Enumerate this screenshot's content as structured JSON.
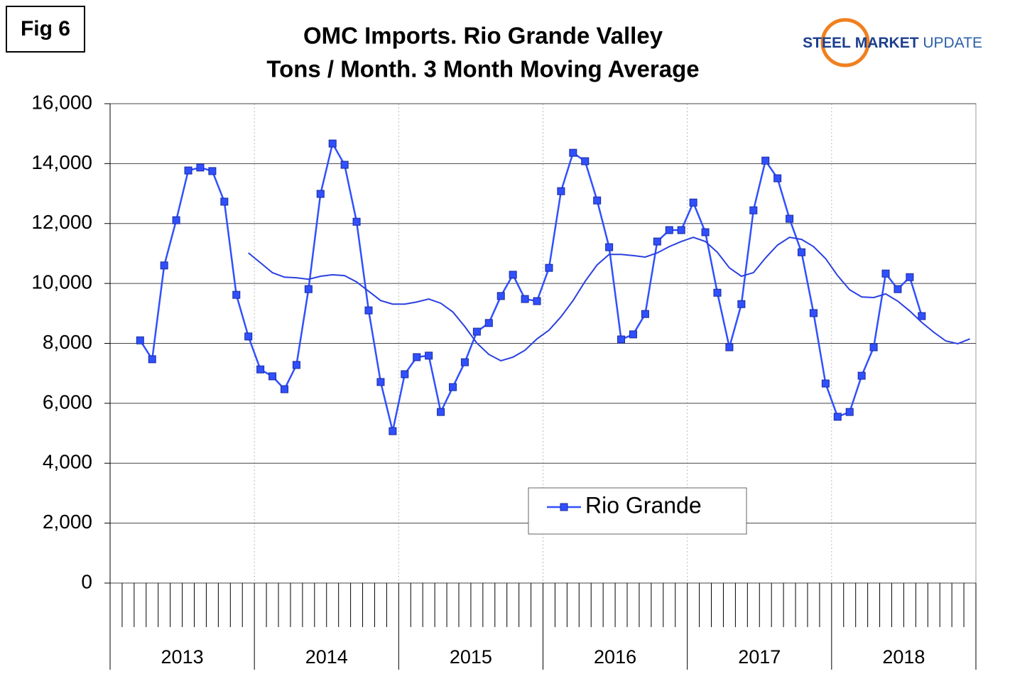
{
  "chart_data": {
    "type": "line",
    "fig_label": "Fig 6",
    "title_lines": [
      "OMC Imports. Rio Grande Valley",
      "Tons / Month. 3 Month Moving Average"
    ],
    "logo": [
      "STEEL",
      "MARKET",
      "UPDATE"
    ],
    "categories": [
      null,
      null,
      null,
      null,
      null,
      null,
      null,
      null,
      null,
      null,
      null,
      null,
      null,
      null,
      null,
      null,
      null,
      null,
      null,
      null,
      null,
      null,
      null,
      null,
      null,
      null,
      null,
      null,
      null,
      null,
      null,
      null,
      null,
      null,
      null,
      null,
      null,
      null,
      null,
      null,
      null,
      null,
      null,
      null,
      null,
      null,
      null,
      null,
      null,
      null,
      null,
      null,
      null,
      null,
      null,
      null,
      null,
      null,
      null,
      null,
      null,
      null,
      null,
      null,
      null,
      null,
      null,
      null,
      null,
      null,
      null,
      null
    ],
    "year_labels": [
      "2013",
      "2014",
      "2015",
      "2016",
      "2017",
      "2018"
    ],
    "series": [
      {
        "name": "Rio Grande",
        "color": "#3050ff",
        "markers": true,
        "values": [
          null,
          null,
          8100,
          7470,
          10600,
          12110,
          13770,
          13870,
          13750,
          12730,
          9620,
          8230,
          7130,
          6900,
          6470,
          7280,
          9810,
          12990,
          14670,
          13960,
          12060,
          9100,
          6710,
          5070,
          6970,
          7540,
          7590,
          5710,
          6540,
          7370,
          8390,
          8680,
          9580,
          10290,
          9480,
          9410,
          10520,
          13080,
          14360,
          14080,
          12770,
          11210,
          8130,
          8300,
          8980,
          11400,
          11780,
          11780,
          12700,
          11710,
          9690,
          7870,
          9310,
          12440,
          14100,
          13510,
          12160,
          11040,
          9010,
          6660,
          5550,
          5710,
          6920,
          7870,
          10330,
          9810,
          10210,
          8910,
          null,
          null,
          null,
          null
        ]
      },
      {
        "color": "#2a40e0",
        "markers": false,
        "values": [
          null,
          null,
          null,
          null,
          null,
          null,
          null,
          null,
          null,
          null,
          null,
          11020,
          10690,
          10360,
          10210,
          10190,
          10140,
          10240,
          10290,
          10260,
          10050,
          9740,
          9430,
          9310,
          9310,
          9380,
          9480,
          9340,
          9050,
          8560,
          8010,
          7630,
          7420,
          7540,
          7770,
          8150,
          8440,
          8890,
          9430,
          10070,
          10620,
          10970,
          10970,
          10930,
          10880,
          11020,
          11230,
          11400,
          11540,
          11400,
          11040,
          10520,
          10240,
          10360,
          10850,
          11280,
          11540,
          11470,
          11230,
          10830,
          10260,
          9790,
          9550,
          9530,
          9650,
          9410,
          9080,
          8700,
          8370,
          8080,
          7990,
          8150
        ]
      }
    ],
    "ylim": [
      0,
      16000
    ],
    "yticks": [
      0,
      {
        "value": 2000,
        "label": "2,000"
      },
      {
        "value": 4000,
        "label": "4,000"
      },
      {
        "value": 6000,
        "label": "6,000"
      },
      {
        "value": 8000,
        "label": "8,000"
      },
      {
        "value": 10000,
        "label": "10,000"
      },
      {
        "value": 12000,
        "label": "12,000"
      },
      {
        "value": 14000,
        "label": "14,000"
      },
      {
        "value": 16000,
        "label": "16,000"
      }
    ],
    "grid": true
  }
}
